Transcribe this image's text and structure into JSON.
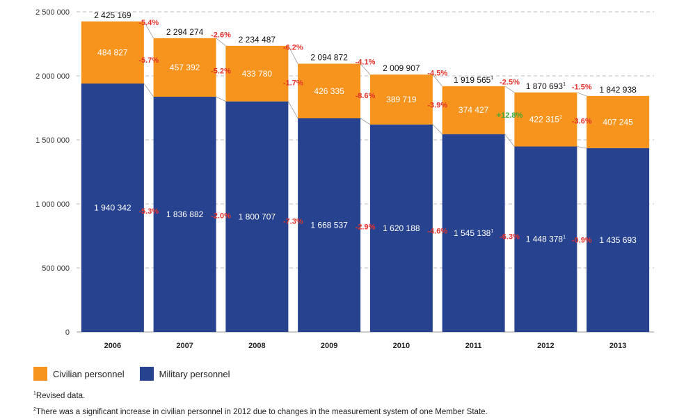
{
  "chart_data": {
    "type": "bar",
    "stacked": true,
    "categories": [
      "2006",
      "2007",
      "2008",
      "2009",
      "2010",
      "2011",
      "2012",
      "2013"
    ],
    "ylim": [
      0,
      2500000
    ],
    "yticks": [
      0,
      500000,
      1000000,
      1500000,
      2000000,
      2500000
    ],
    "ytick_labels": [
      "0",
      "500 000",
      "1 000 000",
      "1 500 000",
      "2 000 000",
      "2 500 000"
    ],
    "grid": true,
    "legend_position": "bottom-left",
    "series": [
      {
        "name": "Military personnel",
        "color": "#27438f",
        "values": [
          1940342,
          1836882,
          1800707,
          1668537,
          1620188,
          1545138,
          1448378,
          1435693
        ],
        "labels": [
          "1 940 342",
          "1 836 882",
          "1 800 707",
          "1 668 537",
          "1 620 188",
          "1 545 138",
          "1 448 378",
          "1 435 693"
        ],
        "label_marks": [
          "",
          "",
          "",
          "",
          "",
          "1",
          "1",
          ""
        ]
      },
      {
        "name": "Civilian personnel",
        "color": "#f7941d",
        "values": [
          484827,
          457392,
          433780,
          426335,
          389719,
          374427,
          422315,
          407245
        ],
        "labels": [
          "484 827",
          "457 392",
          "433 780",
          "426 335",
          "389 719",
          "374 427",
          "422 315",
          "407 245"
        ],
        "label_marks": [
          "",
          "",
          "",
          "",
          "",
          "",
          "2",
          ""
        ]
      }
    ],
    "totals": [
      2425169,
      2294274,
      2234487,
      2094872,
      2009907,
      1919565,
      1870693,
      1842938
    ],
    "total_labels": [
      "2 425 169",
      "2 294 274",
      "2 234 487",
      "2 094 872",
      "2 009 907",
      "1 919 565",
      "1 870 693",
      "1 842 938"
    ],
    "total_marks": [
      "",
      "",
      "",
      "",
      "",
      "1",
      "1",
      ""
    ],
    "changes": {
      "total": [
        "-5.4%",
        "-2.6%",
        "-6.2%",
        "-4.1%",
        "-4.5%",
        "-2.5%",
        "-1.5%"
      ],
      "civilian": [
        "-5.7%",
        "-5.2%",
        "-1.7%",
        "-8.6%",
        "-3.9%",
        "+12.8%",
        "-3.6%"
      ],
      "military": [
        "-5.3%",
        "-2.0%",
        "-7.3%",
        "-2.9%",
        "-4.6%",
        "-6.3%",
        "-0.9%"
      ]
    },
    "colors": {
      "negative": "#e4322b",
      "positive": "#3aa935"
    }
  },
  "legend": [
    {
      "label": "Civilian personnel",
      "color": "#f7941d"
    },
    {
      "label": "Military personnel",
      "color": "#27438f"
    }
  ],
  "footnotes": [
    {
      "mark": "1",
      "text": "Revised data."
    },
    {
      "mark": "2",
      "text": "There was a significant increase in civilian personnel in 2012 due to changes in the measurement system of one Member State."
    }
  ]
}
